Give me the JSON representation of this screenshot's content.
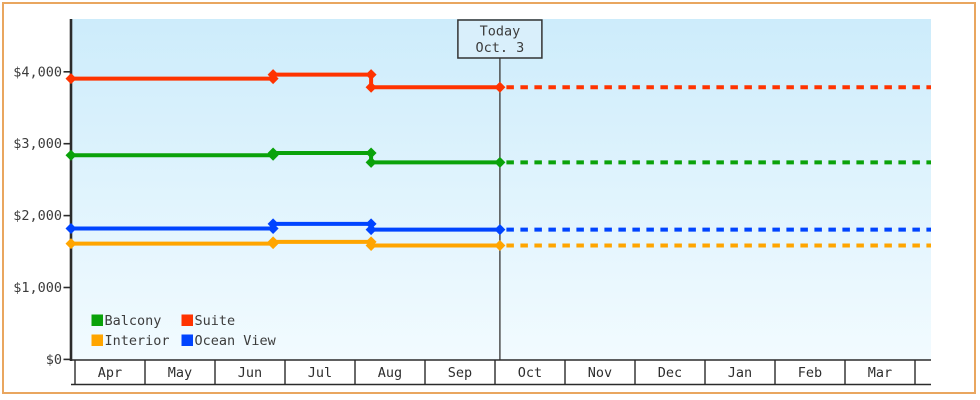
{
  "window": {
    "background": "#ffffff",
    "border_color": "#e9a65f"
  },
  "chart_data": {
    "type": "line",
    "title": "",
    "x_axis": {
      "categories": [
        "Apr",
        "May",
        "Jun",
        "Jul",
        "Aug",
        "Sep",
        "Oct",
        "Nov",
        "Dec",
        "Jan",
        "Feb",
        "Mar"
      ]
    },
    "y_axis": {
      "tick_labels": [
        "$0",
        "$1,000",
        "$2,000",
        "$3,000",
        "$4,000"
      ],
      "tick_values": [
        0,
        1000,
        2000,
        3000,
        4000
      ],
      "range": [
        0,
        4750
      ],
      "grid": false
    },
    "today_marker": {
      "line1": "Today",
      "line2": "Oct. 3",
      "month_frac": 6.07
    },
    "change_points_month_frac": [
      0,
      2.83,
      4.23
    ],
    "series": [
      {
        "name": "Balcony",
        "color": "#0aa20a",
        "values": [
          2840,
          2870,
          2740
        ],
        "projected_value": 2740
      },
      {
        "name": "Suite",
        "color": "#ff3300",
        "values": [
          3905,
          3960,
          3785
        ],
        "projected_value": 3785
      },
      {
        "name": "Interior",
        "color": "#ffa500",
        "values": [
          1610,
          1635,
          1585
        ],
        "projected_value": 1585
      },
      {
        "name": "Ocean View",
        "color": "#0044ff",
        "values": [
          1820,
          1885,
          1805
        ],
        "projected_value": 1805
      }
    ],
    "legend": {
      "position": "bottom-left",
      "rows": [
        [
          "Balcony",
          "Suite"
        ],
        [
          "Interior",
          "Ocean View"
        ]
      ]
    }
  }
}
